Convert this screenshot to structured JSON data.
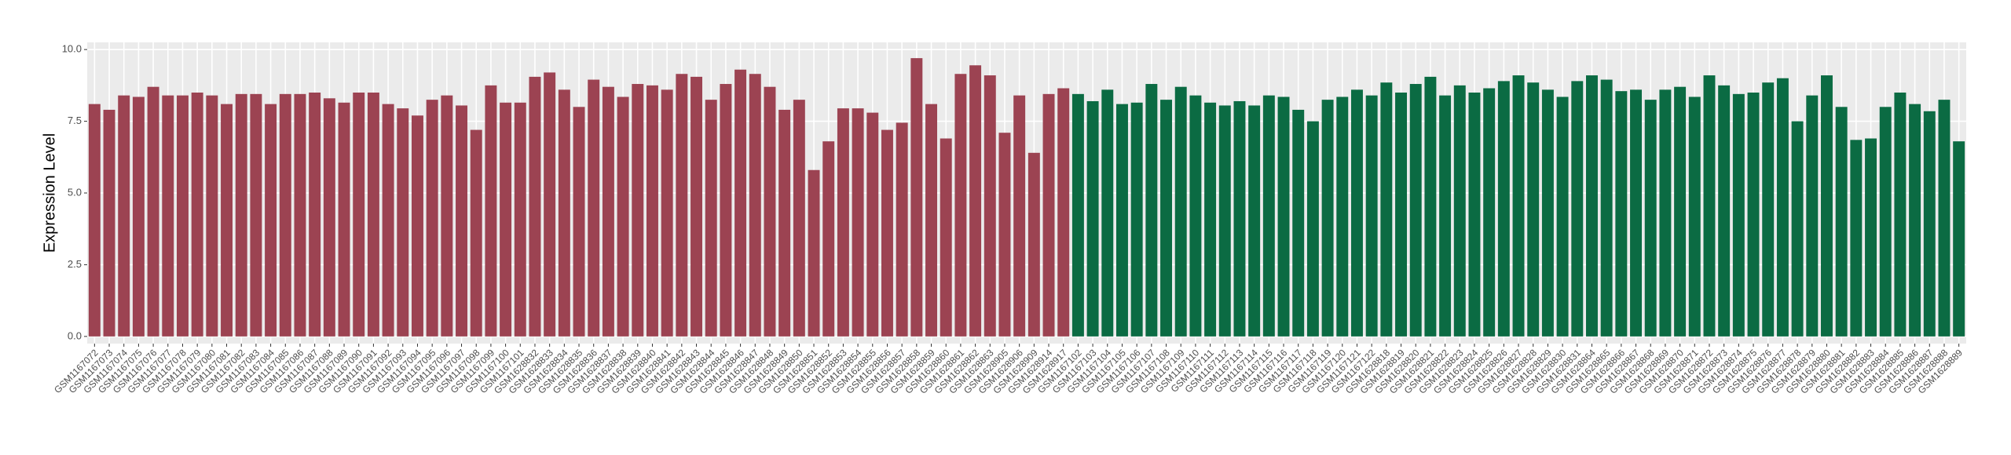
{
  "chart_data": {
    "type": "bar",
    "y_label": "Expression Level",
    "categories": [
      "GSM1167072",
      "GSM1167073",
      "GSM1167074",
      "GSM1167075",
      "GSM1167076",
      "GSM1167077",
      "GSM1167078",
      "GSM1167079",
      "GSM1167080",
      "GSM1167081",
      "GSM1167082",
      "GSM1167083",
      "GSM1167084",
      "GSM1167085",
      "GSM1167086",
      "GSM1167087",
      "GSM1167088",
      "GSM1167089",
      "GSM1167090",
      "GSM1167091",
      "GSM1167092",
      "GSM1167093",
      "GSM1167094",
      "GSM1167095",
      "GSM1167096",
      "GSM1167097",
      "GSM1167098",
      "GSM1167099",
      "GSM1167100",
      "GSM1167101",
      "GSM1628832",
      "GSM1628833",
      "GSM1628834",
      "GSM1628835",
      "GSM1628836",
      "GSM1628837",
      "GSM1628838",
      "GSM1628839",
      "GSM1628840",
      "GSM1628841",
      "GSM1628842",
      "GSM1628843",
      "GSM1628844",
      "GSM1628845",
      "GSM1628846",
      "GSM1628847",
      "GSM1628848",
      "GSM1628849",
      "GSM1628850",
      "GSM1628851",
      "GSM1628852",
      "GSM1628853",
      "GSM1628854",
      "GSM1628855",
      "GSM1628856",
      "GSM1628857",
      "GSM1628858",
      "GSM1628859",
      "GSM1628860",
      "GSM1628861",
      "GSM1628862",
      "GSM1628863",
      "GSM1628905",
      "GSM1628906",
      "GSM1628909",
      "GSM1628914",
      "GSM1628917",
      "GSM1167102",
      "GSM1167103",
      "GSM1167104",
      "GSM1167105",
      "GSM1167106",
      "GSM1167107",
      "GSM1167108",
      "GSM1167109",
      "GSM1167110",
      "GSM1167111",
      "GSM1167112",
      "GSM1167113",
      "GSM1167114",
      "GSM1167115",
      "GSM1167116",
      "GSM1167117",
      "GSM1167118",
      "GSM1167119",
      "GSM1167120",
      "GSM1167121",
      "GSM1167122",
      "GSM1628818",
      "GSM1628819",
      "GSM1628820",
      "GSM1628821",
      "GSM1628822",
      "GSM1628823",
      "GSM1628824",
      "GSM1628825",
      "GSM1628826",
      "GSM1628827",
      "GSM1628828",
      "GSM1628829",
      "GSM1628830",
      "GSM1628831",
      "GSM1628864",
      "GSM1628865",
      "GSM1628866",
      "GSM1628867",
      "GSM1628868",
      "GSM1628869",
      "GSM1628870",
      "GSM1628871",
      "GSM1628872",
      "GSM1628873",
      "GSM1628874",
      "GSM1628875",
      "GSM1628876",
      "GSM1628877",
      "GSM1628878",
      "GSM1628879",
      "GSM1628880",
      "GSM1628881",
      "GSM1628882",
      "GSM1628883",
      "GSM1628884",
      "GSM1628885",
      "GSM1628886",
      "GSM1628887",
      "GSM1628888",
      "GSM1628889"
    ],
    "values": [
      8.1,
      7.9,
      8.4,
      8.35,
      8.7,
      8.4,
      8.4,
      8.5,
      8.4,
      8.1,
      8.45,
      8.45,
      8.1,
      8.45,
      8.45,
      8.5,
      8.3,
      8.15,
      8.5,
      8.5,
      8.1,
      7.95,
      7.7,
      8.25,
      8.4,
      8.05,
      7.2,
      8.75,
      8.15,
      8.15,
      9.05,
      9.2,
      8.6,
      8.0,
      8.95,
      8.7,
      8.35,
      8.8,
      8.75,
      8.6,
      9.15,
      9.05,
      8.25,
      8.8,
      9.3,
      9.15,
      8.7,
      7.9,
      8.25,
      5.8,
      6.8,
      7.95,
      7.95,
      7.8,
      7.2,
      7.45,
      9.7,
      8.1,
      6.9,
      9.15,
      9.45,
      9.1,
      7.1,
      8.4,
      6.4,
      8.45,
      8.65,
      8.45,
      8.2,
      8.6,
      8.1,
      8.15,
      8.8,
      8.25,
      8.7,
      8.4,
      8.15,
      8.05,
      8.2,
      8.05,
      8.4,
      8.35,
      7.9,
      7.5,
      8.25,
      8.35,
      8.6,
      8.4,
      8.85,
      8.5,
      8.8,
      9.05,
      8.4,
      8.75,
      8.5,
      8.65,
      8.9,
      9.1,
      8.85,
      8.6,
      8.35,
      8.9,
      9.1,
      8.95,
      8.55,
      8.6,
      8.25,
      8.6,
      8.7,
      8.35,
      9.1,
      8.75,
      8.45,
      8.5,
      8.85,
      9.0,
      7.5,
      8.4,
      9.1,
      8.0,
      6.85,
      6.9,
      8.0,
      8.5,
      8.1,
      7.85,
      8.25,
      6.8
    ],
    "colors": [
      "#9c4352",
      "#9c4352",
      "#9c4352",
      "#9c4352",
      "#9c4352",
      "#9c4352",
      "#9c4352",
      "#9c4352",
      "#9c4352",
      "#9c4352",
      "#9c4352",
      "#9c4352",
      "#9c4352",
      "#9c4352",
      "#9c4352",
      "#9c4352",
      "#9c4352",
      "#9c4352",
      "#9c4352",
      "#9c4352",
      "#9c4352",
      "#9c4352",
      "#9c4352",
      "#9c4352",
      "#9c4352",
      "#9c4352",
      "#9c4352",
      "#9c4352",
      "#9c4352",
      "#9c4352",
      "#9c4352",
      "#9c4352",
      "#9c4352",
      "#9c4352",
      "#9c4352",
      "#9c4352",
      "#9c4352",
      "#9c4352",
      "#9c4352",
      "#9c4352",
      "#9c4352",
      "#9c4352",
      "#9c4352",
      "#9c4352",
      "#9c4352",
      "#9c4352",
      "#9c4352",
      "#9c4352",
      "#9c4352",
      "#9c4352",
      "#9c4352",
      "#9c4352",
      "#9c4352",
      "#9c4352",
      "#9c4352",
      "#9c4352",
      "#9c4352",
      "#9c4352",
      "#9c4352",
      "#9c4352",
      "#9c4352",
      "#9c4352",
      "#9c4352",
      "#9c4352",
      "#9c4352",
      "#9c4352",
      "#9c4352",
      "#0b6b43",
      "#0b6b43",
      "#0b6b43",
      "#0b6b43",
      "#0b6b43",
      "#0b6b43",
      "#0b6b43",
      "#0b6b43",
      "#0b6b43",
      "#0b6b43",
      "#0b6b43",
      "#0b6b43",
      "#0b6b43",
      "#0b6b43",
      "#0b6b43",
      "#0b6b43",
      "#0b6b43",
      "#0b6b43",
      "#0b6b43",
      "#0b6b43",
      "#0b6b43",
      "#0b6b43",
      "#0b6b43",
      "#0b6b43",
      "#0b6b43",
      "#0b6b43",
      "#0b6b43",
      "#0b6b43",
      "#0b6b43",
      "#0b6b43",
      "#0b6b43",
      "#0b6b43",
      "#0b6b43",
      "#0b6b43",
      "#0b6b43",
      "#0b6b43",
      "#0b6b43",
      "#0b6b43",
      "#0b6b43",
      "#0b6b43",
      "#0b6b43",
      "#0b6b43",
      "#0b6b43",
      "#0b6b43",
      "#0b6b43",
      "#0b6b43",
      "#0b6b43",
      "#0b6b43",
      "#0b6b43",
      "#0b6b43",
      "#0b6b43",
      "#0b6b43",
      "#0b6b43",
      "#0b6b43",
      "#0b6b43",
      "#0b6b43",
      "#0b6b43",
      "#0b6b43",
      "#0b6b43",
      "#0b6b43",
      "#0b6b43"
    ],
    "ylim": [
      -0.25,
      10.25
    ],
    "yticks": [
      {
        "value": 0,
        "label": "0.0"
      },
      2.5,
      {
        "value": 5,
        "label": "5.0"
      },
      7.5,
      {
        "value": 10,
        "label": "10.0"
      }
    ],
    "grid": true
  }
}
